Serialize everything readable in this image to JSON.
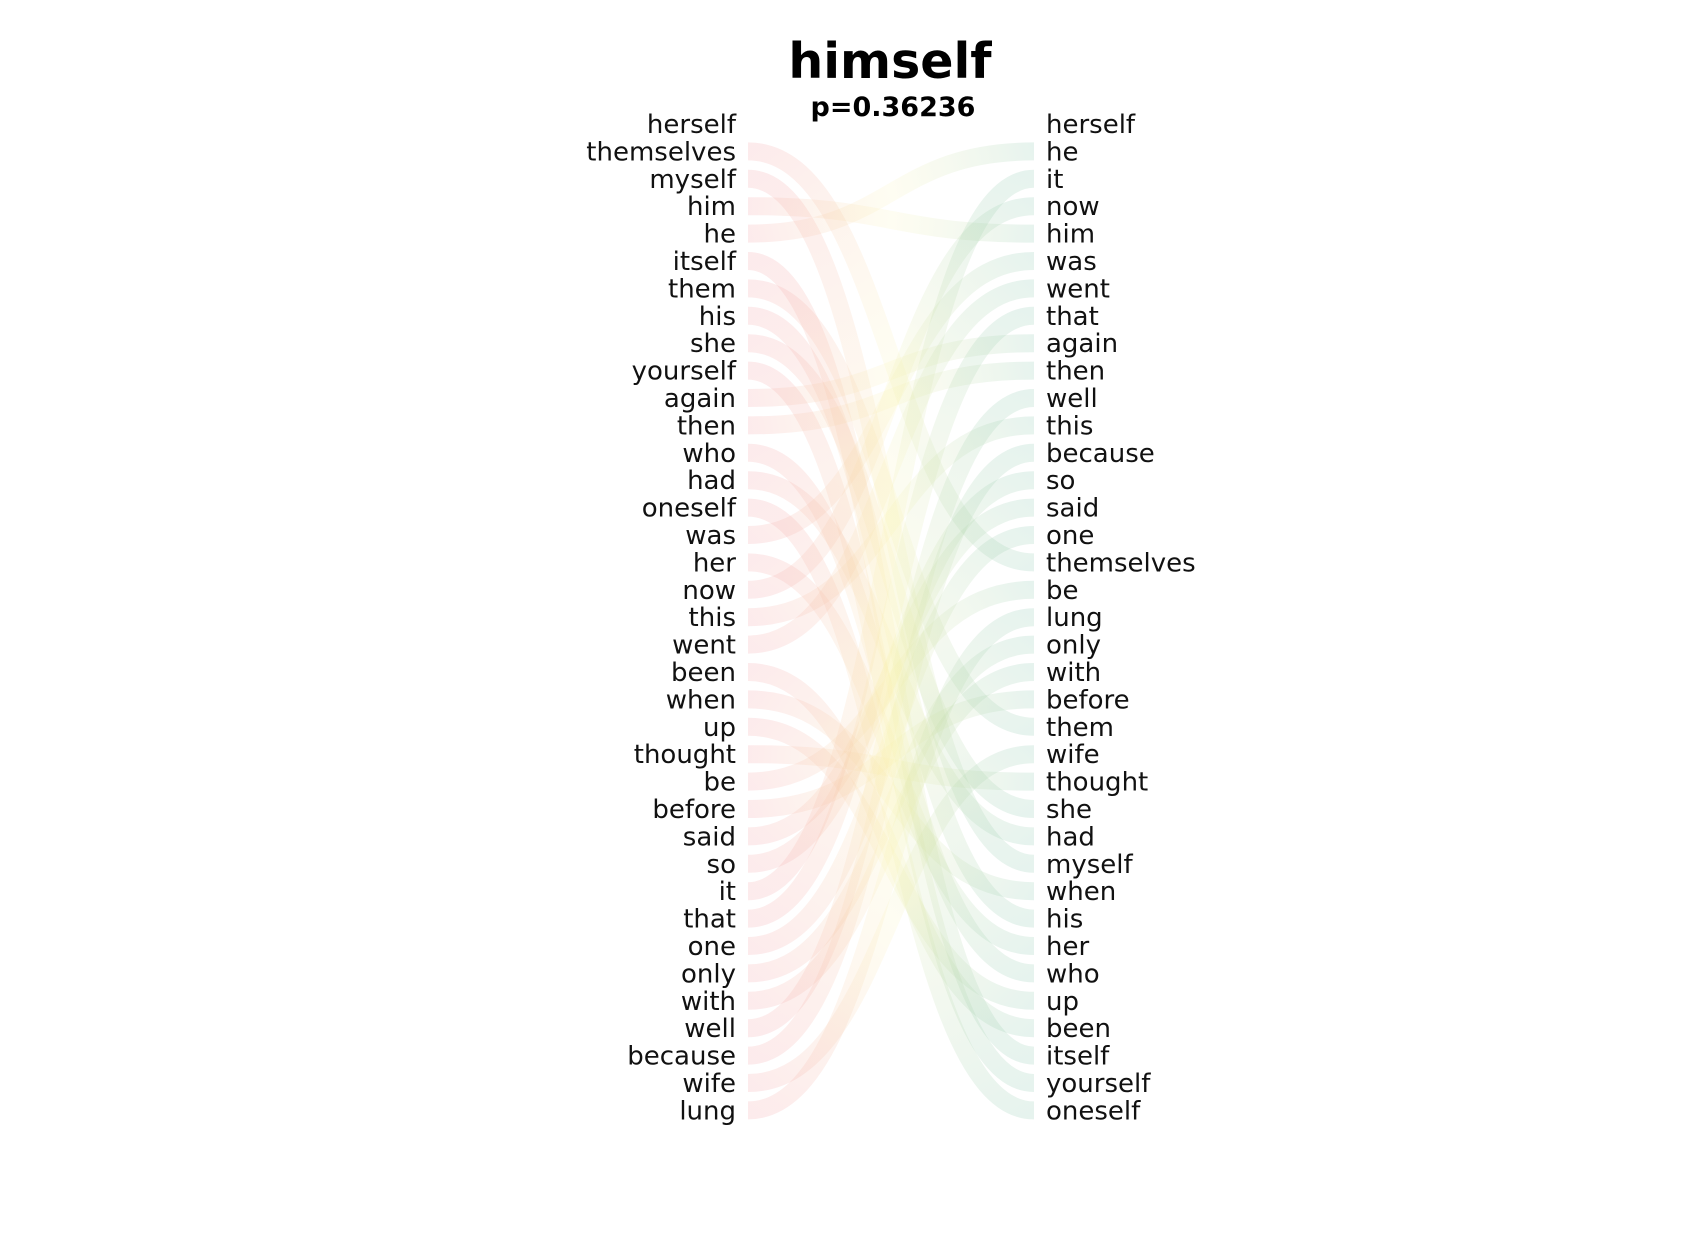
{
  "title": "himself",
  "subtitle": "p=0.36236",
  "colors": {
    "left_band": "#f4a3a8",
    "right_band": "#8fc9b0",
    "mid_band": "#f8f0a0",
    "text": "#111111"
  },
  "chart_data": {
    "type": "rank-comparison",
    "left_list": [
      "herself",
      "themselves",
      "myself",
      "him",
      "he",
      "itself",
      "them",
      "his",
      "she",
      "yourself",
      "again",
      "then",
      "who",
      "had",
      "oneself",
      "was",
      "her",
      "now",
      "this",
      "went",
      "been",
      "when",
      "up",
      "thought",
      "be",
      "before",
      "said",
      "so",
      "it",
      "that",
      "one",
      "only",
      "with",
      "well",
      "because",
      "wife",
      "lung"
    ],
    "right_list": [
      "herself",
      "he",
      "it",
      "now",
      "him",
      "was",
      "went",
      "that",
      "again",
      "then",
      "well",
      "this",
      "because",
      "so",
      "said",
      "one",
      "themselves",
      "be",
      "lung",
      "only",
      "with",
      "before",
      "them",
      "wife",
      "thought",
      "she",
      "had",
      "myself",
      "when",
      "his",
      "her",
      "who",
      "up",
      "been",
      "itself",
      "yourself",
      "oneself"
    ]
  }
}
